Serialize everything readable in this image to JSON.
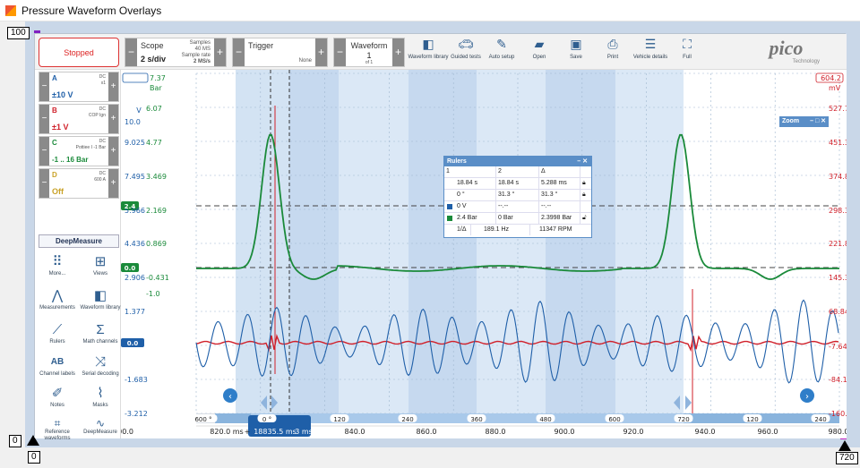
{
  "window": {
    "title": "Pressure Waveform Overlays"
  },
  "markers": {
    "top_left": "100",
    "bottom_left_a": "0",
    "bottom_left_b": "0",
    "bottom_right": "720"
  },
  "toolbar": {
    "stop_label": "Stopped",
    "scope": {
      "title": "Scope",
      "value": "2 s/div",
      "samples_label": "Samples",
      "samples": "40 MS",
      "rate_label": "Sample rate",
      "rate": "2 MS/s"
    },
    "trigger": {
      "title": "Trigger",
      "mode": "None"
    },
    "waveform": {
      "title": "Waveform",
      "index": "1",
      "of": "of 1"
    },
    "tools": [
      {
        "label": "Waveform library",
        "icon": "waveform-library-icon"
      },
      {
        "label": "Guided tests",
        "icon": "car-icon"
      },
      {
        "label": "Auto setup",
        "icon": "auto-setup-icon"
      },
      {
        "label": "Open",
        "icon": "folder-icon"
      },
      {
        "label": "Save",
        "icon": "save-icon"
      },
      {
        "label": "Print",
        "icon": "print-icon"
      },
      {
        "label": "Vehicle details",
        "icon": "clipboard-icon"
      },
      {
        "label": "Full",
        "icon": "fullscreen-icon"
      }
    ],
    "logo": "pico",
    "logo_sub": "Technology"
  },
  "channels": [
    {
      "letter": "A",
      "coupling": "DC",
      "probe": "x1",
      "range": "±10 V",
      "color": "#1f5fa8"
    },
    {
      "letter": "B",
      "coupling": "DC",
      "probe": "COP Ign",
      "range": "±1 V",
      "color": "#d0202a"
    },
    {
      "letter": "C",
      "coupling": "DC",
      "probe": "Pottiee I -1 Bar",
      "range": "-1 .. 16 Bar",
      "color": "#1a8a3a"
    },
    {
      "letter": "D",
      "coupling": "DC",
      "probe": "600 A",
      "range": "Off",
      "color": "#c9a227"
    }
  ],
  "sidebar": {
    "deepmeasure": "DeepMeasure",
    "tools": [
      {
        "label": "More...",
        "icon": "more-icon"
      },
      {
        "label": "Views",
        "icon": "views-icon"
      },
      {
        "label": "Measurements",
        "icon": "measurements-icon"
      },
      {
        "label": "Waveform library",
        "icon": "waveform-library-icon"
      },
      {
        "label": "Rulers",
        "icon": "ruler-icon"
      },
      {
        "label": "Math channels",
        "icon": "sigma-icon"
      },
      {
        "label": "Channel labels",
        "icon": "channel-labels-icon"
      },
      {
        "label": "Serial decoding",
        "icon": "serial-decoding-icon"
      },
      {
        "label": "Notes",
        "icon": "notes-icon"
      },
      {
        "label": "Masks",
        "icon": "masks-icon"
      },
      {
        "label": "Reference waveforms",
        "icon": "reference-icon"
      },
      {
        "label": "DeepMeasure",
        "icon": "deepmeasure-icon"
      }
    ]
  },
  "plot": {
    "zoom_label": "Zoom",
    "axis_a": {
      "unit": "V",
      "ticks": [
        "10.0",
        "9.025",
        "7.495",
        "5.966",
        "4.436",
        "2.906",
        "1.377",
        "-0.1525",
        "-1.683",
        "-3.212"
      ]
    },
    "axis_c": {
      "unit": "Bar",
      "ticks": [
        "7.37",
        "6.07",
        "4.77",
        "3.469",
        "2.169",
        "0.869",
        "-0.431",
        "-1.0"
      ]
    },
    "axis_b": {
      "unit": "mV",
      "ticks": [
        "604.2",
        "527.7",
        "451.3",
        "374.8",
        "298.3",
        "221.8",
        "145.3",
        "68.84",
        "-7.648",
        "-84.13",
        "-160.6"
      ]
    },
    "marker_green_upper": "2.4",
    "marker_green_lower": "0.0",
    "marker_blue": "0.0",
    "angle_ticks": [
      "600 °",
      "0 °",
      "120",
      "240",
      "360",
      "480",
      "600",
      "720",
      "120",
      "240"
    ],
    "time_ticks": [
      "820.0 ms",
      "840.0",
      "860.0",
      "880.0",
      "900.0",
      "920.0",
      "940.0",
      "960.0",
      "980.0",
      "1000.0"
    ],
    "time_readout": "18835.5 ms",
    "time_readout_suffix": "3 ms",
    "plus_sign": "+"
  },
  "rulers": {
    "title": "Rulers",
    "head": [
      "1",
      "2",
      "Δ"
    ],
    "rows": [
      [
        "18.84 s",
        "18.84 s",
        "5.288 ms"
      ],
      [
        "0 °",
        "31.3 °",
        "31.3 °"
      ],
      [
        "0 V",
        "--.--",
        "--.--"
      ],
      [
        "2.4 Bar",
        "0 Bar",
        "2.3998 Bar"
      ]
    ],
    "freq_label": "1/Δ",
    "freq": "189.1 Hz",
    "rpm": "11347 RPM"
  }
}
